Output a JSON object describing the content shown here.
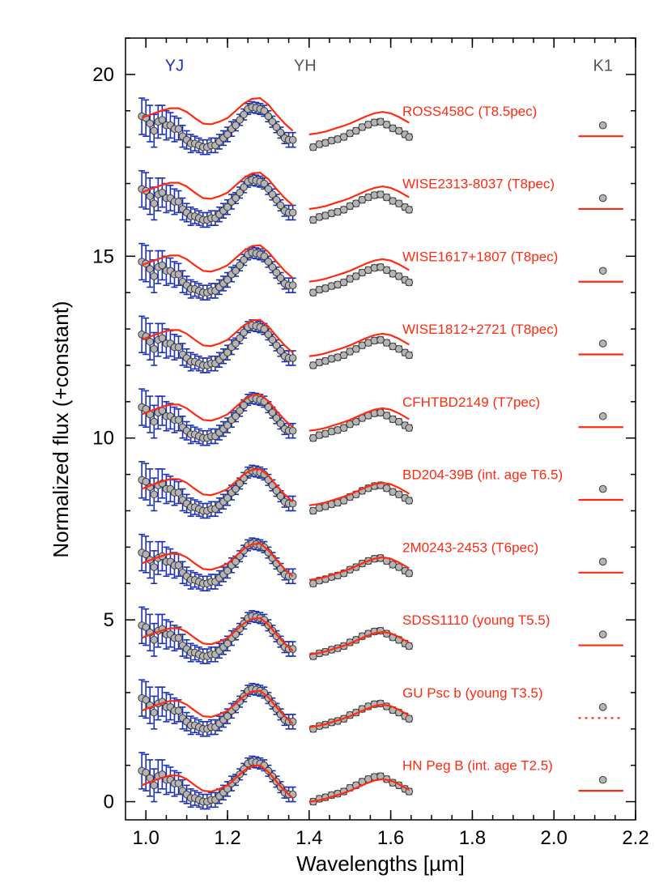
{
  "chart_data": {
    "type": "line",
    "title": "",
    "xlabel": "Wavelengths [µm]",
    "ylabel": "Normalized flux (+constant)",
    "xlim": [
      0.95,
      2.2
    ],
    "ylim": [
      -0.5,
      21.0
    ],
    "x_ticks": [
      1.0,
      1.2,
      1.4,
      1.6,
      1.8,
      2.0,
      2.2
    ],
    "x_tick_labels": [
      "1.0",
      "1.2",
      "1.4",
      "1.6",
      "1.8",
      "2.0",
      "2.2"
    ],
    "y_ticks": [
      0,
      5,
      10,
      15,
      20
    ],
    "y_tick_labels": [
      "0",
      "5",
      "10",
      "15",
      "20"
    ],
    "grid": false,
    "band_labels": [
      {
        "text": "YJ",
        "x": 1.07,
        "y": 20.1,
        "color": "#1a2fb8"
      },
      {
        "text": "YH",
        "x": 1.39,
        "y": 20.1,
        "color": "#555555"
      },
      {
        "text": "K1",
        "x": 2.12,
        "y": 20.1,
        "color": "#555555"
      }
    ],
    "colors": {
      "yj_errorbar": "#1a2fb8",
      "yh_errorbar": "#555555",
      "point_fill": "#b4b4b4",
      "model_line": "#ff2a10"
    },
    "template": {
      "yj_x": [
        0.99,
        1.0,
        1.01,
        1.02,
        1.03,
        1.04,
        1.05,
        1.06,
        1.07,
        1.08,
        1.09,
        1.1,
        1.11,
        1.12,
        1.13,
        1.14,
        1.15,
        1.16,
        1.17,
        1.18,
        1.19,
        1.2,
        1.21,
        1.22,
        1.23,
        1.24,
        1.25,
        1.26,
        1.27,
        1.28,
        1.29,
        1.3,
        1.31,
        1.32,
        1.33,
        1.34,
        1.35,
        1.36
      ],
      "yj_y": [
        0.85,
        0.8,
        0.65,
        0.45,
        0.7,
        0.75,
        0.6,
        0.6,
        0.5,
        0.5,
        0.3,
        0.2,
        0.1,
        0.1,
        0.05,
        0.0,
        0.0,
        0.05,
        0.05,
        0.15,
        0.25,
        0.35,
        0.5,
        0.6,
        0.75,
        0.9,
        1.05,
        1.1,
        1.08,
        1.05,
        1.0,
        0.85,
        0.7,
        0.55,
        0.4,
        0.25,
        0.2,
        0.2
      ],
      "yj_err": [
        0.5,
        0.5,
        0.5,
        0.45,
        0.45,
        0.4,
        0.4,
        0.35,
        0.35,
        0.3,
        0.3,
        0.25,
        0.25,
        0.2,
        0.2,
        0.2,
        0.2,
        0.2,
        0.2,
        0.2,
        0.2,
        0.2,
        0.2,
        0.15,
        0.15,
        0.15,
        0.15,
        0.15,
        0.15,
        0.15,
        0.15,
        0.15,
        0.15,
        0.15,
        0.15,
        0.15,
        0.2,
        0.2
      ],
      "yh_x": [
        1.41,
        1.425,
        1.44,
        1.455,
        1.47,
        1.485,
        1.5,
        1.515,
        1.53,
        1.545,
        1.56,
        1.575,
        1.59,
        1.605,
        1.62,
        1.635,
        1.645
      ],
      "yh_y": [
        0.0,
        0.08,
        0.12,
        0.18,
        0.22,
        0.28,
        0.38,
        0.45,
        0.55,
        0.62,
        0.68,
        0.7,
        0.62,
        0.52,
        0.45,
        0.35,
        0.28
      ],
      "k1_x": 2.12,
      "k1_y": 0.6,
      "k1_err": 0.05,
      "model_x": [
        0.99,
        1.0,
        1.02,
        1.04,
        1.06,
        1.08,
        1.1,
        1.12,
        1.14,
        1.16,
        1.18,
        1.2,
        1.22,
        1.24,
        1.26,
        1.28,
        1.3,
        1.32,
        1.34,
        1.36,
        1.4,
        1.42,
        1.44,
        1.46,
        1.48,
        1.5,
        1.52,
        1.54,
        1.56,
        1.58,
        1.6,
        1.62,
        1.645
      ],
      "model_y": [
        0.45,
        0.5,
        0.58,
        0.66,
        0.72,
        0.72,
        0.62,
        0.45,
        0.3,
        0.28,
        0.35,
        0.45,
        0.65,
        0.85,
        0.98,
        1.0,
        0.82,
        0.55,
        0.3,
        0.1,
        0.0,
        0.03,
        0.08,
        0.15,
        0.22,
        0.3,
        0.4,
        0.5,
        0.58,
        0.62,
        0.58,
        0.48,
        0.32
      ],
      "k1_model_x": [
        2.06,
        2.17
      ],
      "k1_model_y": 0.3
    },
    "series": [
      {
        "name": "HN Peg B (int. age T2.5)",
        "offset": 0,
        "model_offset": 0.0,
        "k1_model_style": "solid"
      },
      {
        "name": "GU Psc b (young T3.5)",
        "offset": 2,
        "model_offset": 0.05,
        "k1_model_style": "dotted"
      },
      {
        "name": "SDSS1110 (young T5.5)",
        "offset": 4,
        "model_offset": 0.05,
        "k1_model_style": "solid"
      },
      {
        "name": "2M0243-2453 (T6pec)",
        "offset": 6,
        "model_offset": 0.1,
        "k1_model_style": "solid"
      },
      {
        "name": "BD204-39B (int. age T6.5)",
        "offset": 8,
        "model_offset": 0.15,
        "k1_model_style": "solid"
      },
      {
        "name": "CFHTBD2149 (T7pec)",
        "offset": 10,
        "model_offset": 0.2,
        "k1_model_style": "solid"
      },
      {
        "name": "WISE1812+2721 (T8pec)",
        "offset": 12,
        "model_offset": 0.25,
        "k1_model_style": "solid"
      },
      {
        "name": "WISE1617+1807 (T8pec)",
        "offset": 14,
        "model_offset": 0.3,
        "k1_model_style": "solid"
      },
      {
        "name": "WISE2313-8037 (T8pec)",
        "offset": 16,
        "model_offset": 0.3,
        "k1_model_style": "solid"
      },
      {
        "name": "ROSS458C (T8.5pec)",
        "offset": 18,
        "model_offset": 0.35,
        "k1_model_style": "solid"
      }
    ]
  }
}
